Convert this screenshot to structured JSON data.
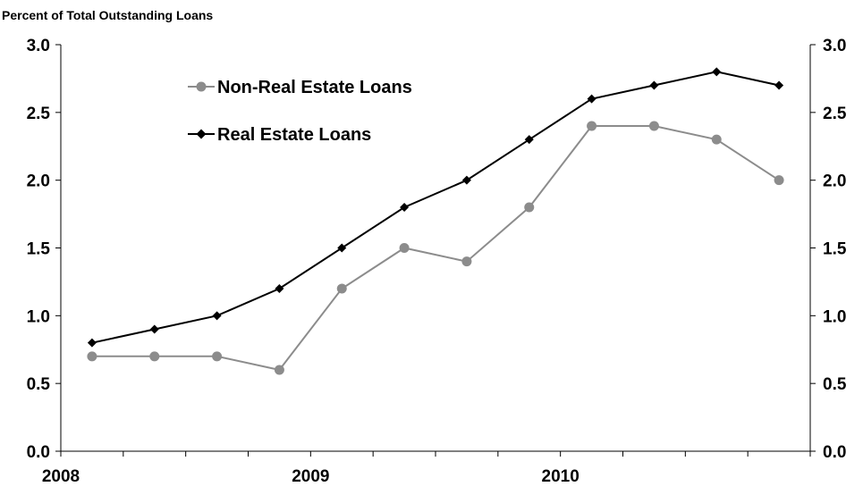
{
  "chart_data": {
    "type": "line",
    "title": "",
    "ylabel": "Percent of Total Outstanding  Loans",
    "xlabel": "",
    "ylim": [
      0,
      3.0
    ],
    "y_ticks": [
      "0.0",
      "0.5",
      "1.0",
      "1.5",
      "2.0",
      "2.5",
      "3.0"
    ],
    "y_tick_values": [
      0,
      0.5,
      1.0,
      1.5,
      2.0,
      2.5,
      3.0
    ],
    "y_right_ticks": [
      "0.0",
      "0.5",
      "1.0",
      "1.5",
      "2.0",
      "2.5",
      "3.0"
    ],
    "x_labels": [
      "2008",
      "2009",
      "2010"
    ],
    "x_periods": [
      "2008 Q1",
      "2008 Q2",
      "2008 Q3",
      "2008 Q4",
      "2009 Q1",
      "2009 Q2",
      "2009 Q3",
      "2009 Q4",
      "2010 Q1",
      "2010 Q2",
      "2010 Q3",
      "2010 Q4"
    ],
    "grid": false,
    "legend_position": "top-left",
    "series": [
      {
        "name": "Non-Real Estate Loans",
        "color": "#8c8c8c",
        "marker": "circle",
        "values": [
          0.7,
          0.7,
          0.7,
          0.6,
          1.2,
          1.5,
          1.4,
          1.8,
          2.4,
          2.4,
          2.3,
          2.0
        ]
      },
      {
        "name": "Real Estate Loans",
        "color": "#000000",
        "marker": "diamond",
        "values": [
          0.8,
          0.9,
          1.0,
          1.2,
          1.5,
          1.8,
          2.0,
          2.3,
          2.6,
          2.7,
          2.8,
          2.7
        ]
      }
    ]
  }
}
